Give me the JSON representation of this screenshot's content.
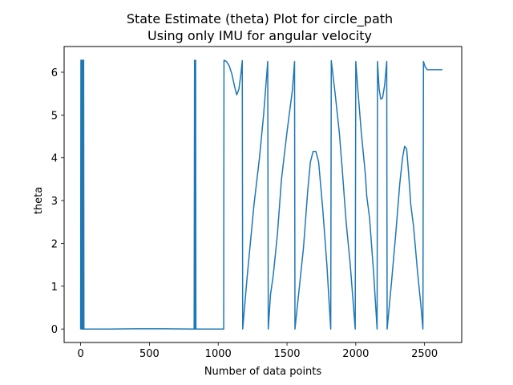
{
  "chart_data": {
    "type": "line",
    "title": "State Estimate (theta) Plot for circle_path",
    "subtitle": "Using only IMU for angular velocity",
    "xlabel": "Number of data points",
    "ylabel": "theta",
    "xlim": [
      -120,
      2770
    ],
    "ylim": [
      -0.315,
      6.6
    ],
    "xticks": [
      0,
      500,
      1000,
      1500,
      2000,
      2500
    ],
    "xtick_labels": [
      "0",
      "500",
      "1000",
      "1500",
      "2000",
      "2500"
    ],
    "yticks": [
      0,
      1,
      2,
      3,
      4,
      5,
      6
    ],
    "ytick_labels": [
      "0",
      "1",
      "2",
      "3",
      "4",
      "5",
      "6"
    ],
    "grid": false,
    "series": [
      {
        "color": "#1f77b4",
        "points": [
          [
            0,
            0.0
          ],
          [
            2,
            6.28
          ],
          [
            4,
            0.0
          ],
          [
            6,
            6.28
          ],
          [
            8,
            0.0
          ],
          [
            10,
            6.28
          ],
          [
            12,
            0.0
          ],
          [
            14,
            6.28
          ],
          [
            16,
            0.0
          ],
          [
            18,
            6.28
          ],
          [
            20,
            0.0
          ],
          [
            22,
            6.28
          ],
          [
            24,
            0.0
          ],
          [
            200,
            0.0
          ],
          [
            400,
            0.005
          ],
          [
            600,
            0.005
          ],
          [
            825,
            0.0
          ],
          [
            828,
            6.28
          ],
          [
            830,
            0.0
          ],
          [
            832,
            6.28
          ],
          [
            834,
            0.0
          ],
          [
            836,
            6.28
          ],
          [
            838,
            0.0
          ],
          [
            1040,
            0.0
          ],
          [
            1042,
            6.28
          ],
          [
            1060,
            6.25
          ],
          [
            1080,
            6.15
          ],
          [
            1100,
            5.95
          ],
          [
            1120,
            5.65
          ],
          [
            1135,
            5.47
          ],
          [
            1150,
            5.6
          ],
          [
            1165,
            5.95
          ],
          [
            1175,
            6.27
          ],
          [
            1178,
            0.0
          ],
          [
            1210,
            1.2
          ],
          [
            1260,
            2.9
          ],
          [
            1300,
            4.0
          ],
          [
            1330,
            5.0
          ],
          [
            1360,
            6.25
          ],
          [
            1364,
            0.0
          ],
          [
            1380,
            0.8
          ],
          [
            1400,
            1.25
          ],
          [
            1430,
            2.2
          ],
          [
            1460,
            3.5
          ],
          [
            1500,
            4.6
          ],
          [
            1540,
            5.6
          ],
          [
            1555,
            6.25
          ],
          [
            1558,
            0.0
          ],
          [
            1620,
            1.9
          ],
          [
            1650,
            3.2
          ],
          [
            1670,
            3.9
          ],
          [
            1690,
            4.15
          ],
          [
            1710,
            4.15
          ],
          [
            1730,
            3.9
          ],
          [
            1760,
            2.8
          ],
          [
            1790,
            1.5
          ],
          [
            1818,
            0.0
          ],
          [
            1822,
            6.27
          ],
          [
            1850,
            5.5
          ],
          [
            1880,
            4.6
          ],
          [
            1900,
            3.8
          ],
          [
            1930,
            2.5
          ],
          [
            1960,
            1.5
          ],
          [
            1996,
            0.0
          ],
          [
            2000,
            6.25
          ],
          [
            2015,
            5.6
          ],
          [
            2040,
            4.6
          ],
          [
            2070,
            3.6
          ],
          [
            2080,
            3.1
          ],
          [
            2100,
            2.6
          ],
          [
            2130,
            1.3
          ],
          [
            2155,
            0.0
          ],
          [
            2158,
            6.25
          ],
          [
            2170,
            5.6
          ],
          [
            2182,
            5.37
          ],
          [
            2195,
            5.4
          ],
          [
            2210,
            5.7
          ],
          [
            2225,
            6.25
          ],
          [
            2228,
            0.0
          ],
          [
            2260,
            1.1
          ],
          [
            2290,
            2.2
          ],
          [
            2320,
            3.4
          ],
          [
            2340,
            4.0
          ],
          [
            2355,
            4.27
          ],
          [
            2370,
            4.2
          ],
          [
            2385,
            3.6
          ],
          [
            2400,
            2.9
          ],
          [
            2420,
            2.4
          ],
          [
            2450,
            1.3
          ],
          [
            2475,
            0.5
          ],
          [
            2488,
            0.0
          ],
          [
            2492,
            6.25
          ],
          [
            2505,
            6.12
          ],
          [
            2520,
            6.06
          ],
          [
            2600,
            6.06
          ],
          [
            2630,
            6.06
          ]
        ]
      }
    ]
  }
}
